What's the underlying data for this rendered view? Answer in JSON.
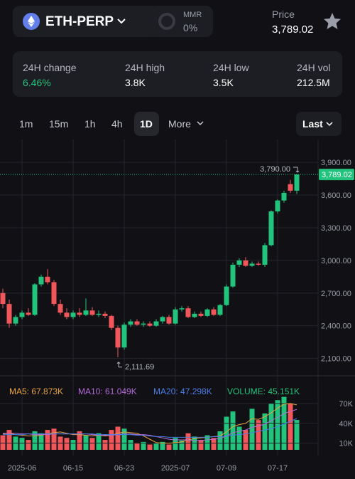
{
  "header": {
    "symbol": "ETH-PERP",
    "mmr_label": "MMR",
    "mmr_value": "0%",
    "price_label": "Price",
    "price": "3,789.02"
  },
  "stats": [
    {
      "label": "24H change",
      "value": "6.46%"
    },
    {
      "label": "24H high",
      "value": "3.8K"
    },
    {
      "label": "24H low",
      "value": "3.5K"
    },
    {
      "label": "24H vol",
      "value": "212.5M"
    }
  ],
  "timeframes": [
    "1m",
    "15m",
    "1h",
    "4h",
    "1D",
    "More"
  ],
  "price_type": "Last",
  "chart_data": [
    {
      "type": "candlestick",
      "categories": [
        null,
        null,
        null,
        "2025-06",
        null,
        null,
        null,
        null,
        null,
        null,
        null,
        "06-15",
        null,
        null,
        null,
        null,
        null,
        null,
        null,
        "06-23",
        null,
        null,
        null,
        null,
        null,
        null,
        null,
        "2025-07",
        null,
        null,
        null,
        null,
        null,
        null,
        null,
        "07-09",
        null,
        null,
        null,
        null,
        null,
        null,
        null,
        "07-17",
        null,
        null,
        null
      ],
      "open": [
        2700,
        2600,
        2420,
        2480,
        2520,
        2500,
        2780,
        2850,
        2800,
        2600,
        2520,
        2480,
        2520,
        2500,
        2540,
        2500,
        2510,
        2490,
        2380,
        2200,
        2410,
        2440,
        2410,
        2420,
        2400,
        2440,
        2480,
        2420,
        2550,
        2560,
        2480,
        2510,
        2490,
        2550,
        2500,
        2590,
        2760,
        2960,
        3000,
        2950,
        2970,
        2960,
        3140,
        3450,
        3550,
        3700,
        3640
      ],
      "high": [
        2740,
        2640,
        2500,
        2540,
        2560,
        2790,
        2870,
        2920,
        2820,
        2640,
        2560,
        2540,
        2560,
        2650,
        2570,
        2540,
        2530,
        2500,
        2400,
        2430,
        2460,
        2460,
        2440,
        2440,
        2460,
        2490,
        2500,
        2570,
        2580,
        2580,
        2530,
        2530,
        2560,
        2570,
        2600,
        2780,
        2980,
        3020,
        3030,
        2990,
        2990,
        3160,
        3460,
        3560,
        3640,
        3740,
        3790
      ],
      "low": [
        2560,
        2380,
        2400,
        2460,
        2490,
        2490,
        2760,
        2780,
        2580,
        2500,
        2460,
        2460,
        2480,
        2490,
        2490,
        2480,
        2470,
        2360,
        2111.69,
        2180,
        2390,
        2400,
        2390,
        2390,
        2390,
        2420,
        2410,
        2410,
        2530,
        2470,
        2470,
        2480,
        2480,
        2490,
        2490,
        2580,
        2750,
        2940,
        2940,
        2940,
        2950,
        2940,
        3130,
        3430,
        3530,
        3620,
        3610
      ],
      "close": [
        2600,
        2420,
        2480,
        2520,
        2500,
        2780,
        2850,
        2800,
        2600,
        2520,
        2480,
        2520,
        2500,
        2540,
        2500,
        2510,
        2490,
        2380,
        2200,
        2410,
        2440,
        2410,
        2420,
        2400,
        2440,
        2480,
        2420,
        2550,
        2560,
        2480,
        2510,
        2490,
        2550,
        2500,
        2590,
        2760,
        2960,
        3000,
        2950,
        2970,
        2960,
        3140,
        3450,
        3550,
        3620,
        3640,
        3789.02
      ],
      "ylim": [
        1960,
        4110
      ],
      "yticks": [
        {
          "value": 2100,
          "label": "2,100.00"
        },
        {
          "value": 2400,
          "label": "2,400.00"
        },
        {
          "value": 2700,
          "label": "2,700.00"
        },
        {
          "value": 3000,
          "label": "3,000.00"
        },
        {
          "value": 3300,
          "label": "3,300.00"
        },
        {
          "value": 3600,
          "label": "3,600.00"
        },
        {
          "value": 3900,
          "label": "3,900.00"
        }
      ],
      "last_price": {
        "value": 3789.02,
        "label": "3,789.02"
      },
      "high_annotation": {
        "value": 3790,
        "label": "3,790.00"
      },
      "low_annotation": {
        "value": 2111.69,
        "label": "2,111.69"
      },
      "up_color": "#22c37c",
      "down_color": "#f0565a",
      "grid": true
    },
    {
      "type": "bar",
      "values": [
        22000,
        30000,
        20000,
        18000,
        15000,
        28000,
        25000,
        30000,
        32000,
        20000,
        18000,
        15000,
        28000,
        22000,
        18000,
        25000,
        15000,
        30000,
        35000,
        32000,
        15000,
        10000,
        12000,
        8000,
        10000,
        12000,
        8000,
        18000,
        14000,
        25000,
        20000,
        15000,
        22000,
        18000,
        28000,
        50000,
        58000,
        35000,
        30000,
        62000,
        45000,
        55000,
        70000,
        75000,
        80000,
        70000,
        45151
      ],
      "volume_label": "VOLUME: 45.151K",
      "volume_color": "#22c37c",
      "ylim": [
        0,
        100000
      ],
      "yticks": [
        {
          "value": 10000,
          "label": "10K"
        },
        {
          "value": 40000,
          "label": "40K"
        },
        {
          "value": 70000,
          "label": "70K"
        }
      ],
      "series": [
        {
          "name": "MA5: 67.873K",
          "color": "#e8a33d",
          "values": [
            24000,
            25000,
            23000,
            22000,
            21000,
            21000,
            22000,
            24000,
            26000,
            27000,
            25000,
            23000,
            23000,
            22000,
            21000,
            22000,
            21000,
            22000,
            25000,
            27000,
            26000,
            25000,
            21000,
            16000,
            11000,
            10000,
            10000,
            11000,
            12000,
            15000,
            17000,
            18000,
            19000,
            20000,
            21000,
            27000,
            35000,
            38000,
            40000,
            47000,
            46000,
            50000,
            56000,
            63000,
            69000,
            70000,
            67873
          ]
        },
        {
          "name": "MA10: 61.049K",
          "color": "#b36ad6",
          "values": [
            25000,
            25000,
            25000,
            24000,
            24000,
            23000,
            23000,
            23000,
            24000,
            24000,
            24000,
            24000,
            24000,
            24000,
            23000,
            22000,
            22000,
            22000,
            23000,
            24000,
            24000,
            23000,
            23000,
            22000,
            20000,
            18000,
            16000,
            15000,
            15000,
            15000,
            14000,
            14000,
            15000,
            16000,
            17000,
            21000,
            26000,
            28000,
            30000,
            34000,
            36000,
            39000,
            44000,
            49000,
            55000,
            58000,
            61049
          ]
        },
        {
          "name": "MA20: 47.298K",
          "color": "#4a7de8",
          "values": [
            23000,
            23000,
            23000,
            23000,
            24000,
            24000,
            24000,
            24000,
            24000,
            24000,
            24000,
            24000,
            24000,
            24000,
            24000,
            23000,
            23000,
            23000,
            23000,
            23000,
            23000,
            22000,
            22000,
            21000,
            20000,
            20000,
            19000,
            19000,
            19000,
            19000,
            19000,
            19000,
            19000,
            20000,
            20000,
            21000,
            22000,
            23000,
            24000,
            26000,
            28000,
            30000,
            32000,
            35000,
            39000,
            43000,
            47298
          ]
        }
      ]
    }
  ]
}
